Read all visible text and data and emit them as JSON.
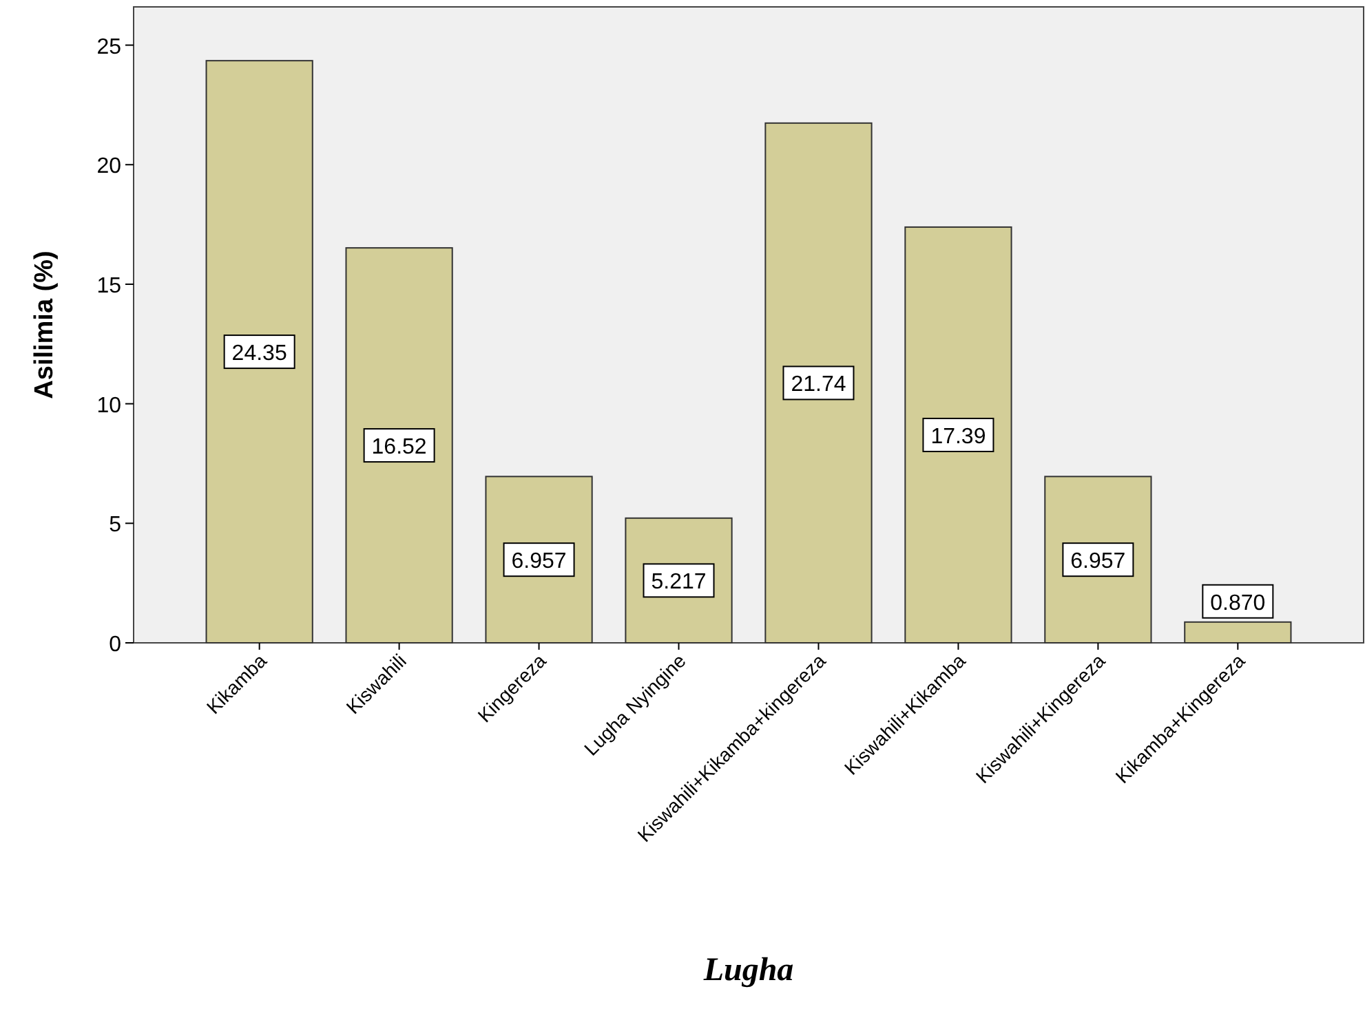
{
  "chart_data": {
    "type": "bar",
    "xlabel": "Lugha",
    "ylabel": "Asilimia (%)",
    "categories": [
      "Kikamba",
      "Kiswahili",
      "Kingereza",
      "Lugha Nyingine",
      "Kiswahili+Kikamba+kingereza",
      "Kiswahili+Kikamba",
      "Kiswahili+Kingereza",
      "Kikamba+Kingereza"
    ],
    "values": [
      24.35,
      16.52,
      6.957,
      5.217,
      21.74,
      17.39,
      6.957,
      0.87
    ],
    "value_labels": [
      "24.35",
      "16.52",
      "6.957",
      "5.217",
      "21.74",
      "17.39",
      "6.957",
      "0.870"
    ],
    "color": "#d3ce98",
    "ylim": [
      0,
      26.6
    ],
    "yticks": [
      0,
      5,
      10,
      15,
      20,
      25
    ],
    "grid": false
  }
}
